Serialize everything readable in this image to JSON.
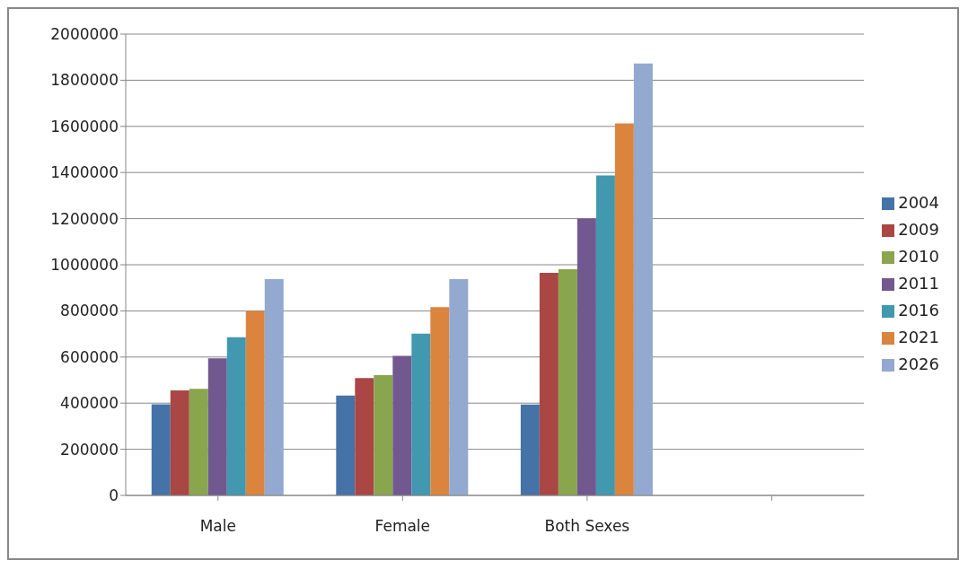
{
  "chart_data": {
    "type": "bar",
    "categories": [
      "Male",
      "Female",
      "Both Sexes",
      null
    ],
    "series": [
      {
        "name": "2004",
        "color": "#4572a7",
        "values": [
          395000,
          433000,
          394000,
          null
        ]
      },
      {
        "name": "2009",
        "color": "#aa4643",
        "values": [
          455000,
          509000,
          965000,
          null
        ]
      },
      {
        "name": "2010",
        "color": "#89a54e",
        "values": [
          462000,
          521000,
          981000,
          null
        ]
      },
      {
        "name": "2011",
        "color": "#71588f",
        "values": [
          594000,
          605000,
          1200000,
          null
        ]
      },
      {
        "name": "2016",
        "color": "#4198af",
        "values": [
          686000,
          701000,
          1387000,
          null
        ]
      },
      {
        "name": "2021",
        "color": "#db843d",
        "values": [
          800000,
          816000,
          1613000,
          null
        ]
      },
      {
        "name": "2026",
        "color": "#93a9cf",
        "values": [
          938000,
          938000,
          1873000,
          null
        ]
      }
    ],
    "ylim": [
      0,
      2000000
    ],
    "yticks": [
      0,
      200000,
      400000,
      600000,
      800000,
      1000000,
      1200000,
      1400000,
      1600000,
      1800000,
      2000000
    ],
    "grid": "y",
    "legend": "right"
  }
}
